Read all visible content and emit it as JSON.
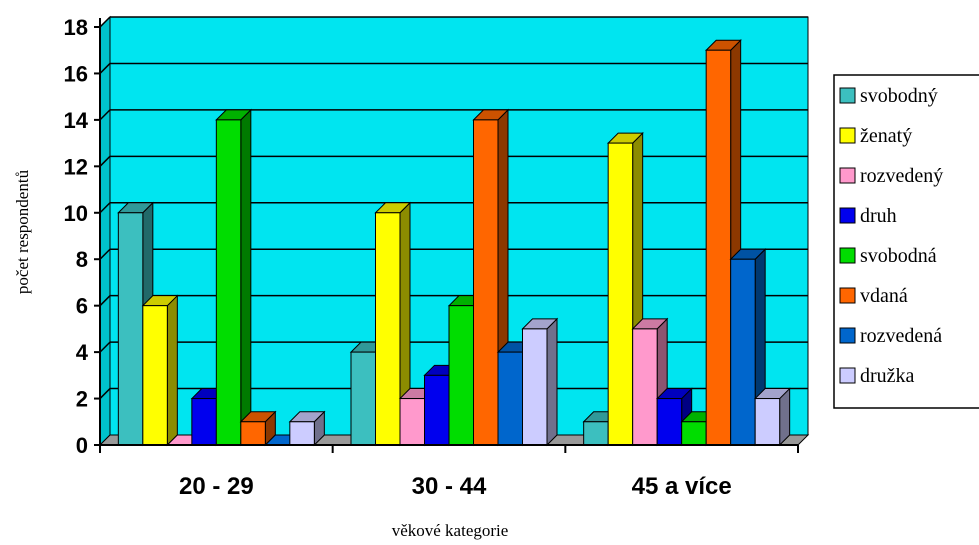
{
  "chart_data": {
    "type": "bar",
    "title": "",
    "xlabel": "věkové kategorie",
    "ylabel": "počet respondentů",
    "categories": [
      "20 - 29",
      "30 - 44",
      "45 a více"
    ],
    "ylim": [
      0,
      18
    ],
    "yticks": [
      0,
      2,
      4,
      6,
      8,
      10,
      12,
      14,
      16,
      18
    ],
    "grid": true,
    "legend_position": "right",
    "plot_background": "#00E5F0",
    "series": [
      {
        "name": "svobodný",
        "color": "#3CBFBF",
        "values": [
          10,
          4,
          1
        ]
      },
      {
        "name": "ženatý",
        "color": "#FFFF00",
        "values": [
          6,
          10,
          13
        ]
      },
      {
        "name": "rozvedený",
        "color": "#FF99CC",
        "values": [
          0,
          2,
          5
        ]
      },
      {
        "name": "druh",
        "color": "#0000EE",
        "values": [
          2,
          3,
          2
        ]
      },
      {
        "name": "svobodná",
        "color": "#00DD00",
        "values": [
          14,
          6,
          1
        ]
      },
      {
        "name": "vdaná",
        "color": "#FF6600",
        "values": [
          1,
          14,
          17
        ]
      },
      {
        "name": "rozvedená",
        "color": "#0066CC",
        "values": [
          0,
          4,
          8
        ]
      },
      {
        "name": "družka",
        "color": "#CCCCFF",
        "values": [
          1,
          5,
          2
        ]
      }
    ]
  }
}
